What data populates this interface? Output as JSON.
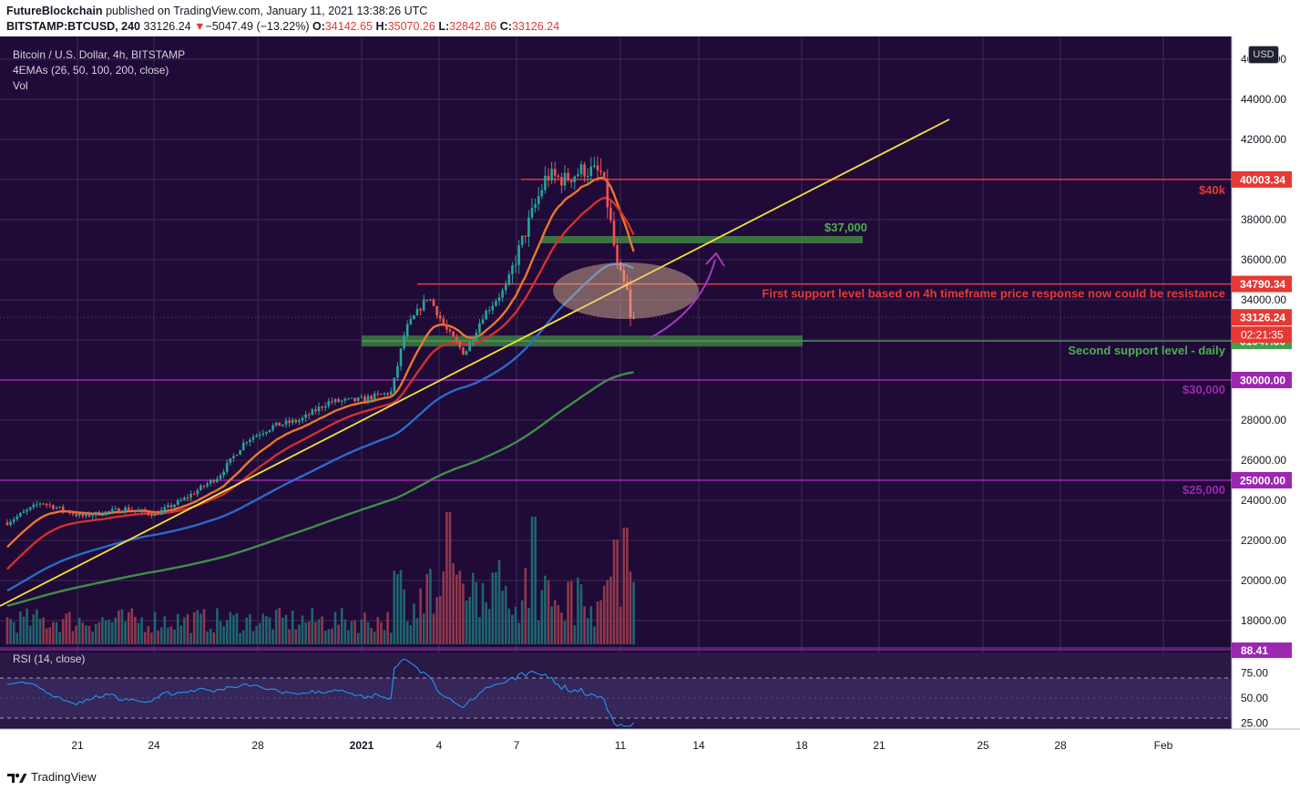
{
  "header": {
    "author": "FutureBlockchain",
    "published_text": "published on TradingView.com, January 11, 2021 13:38:26 UTC",
    "symbol": "BITSTAMP:BTCUSD, 240",
    "last": "33126.24",
    "change_arrow": "▼",
    "change": "−5047.49 (−13.22%)",
    "o_label": "O:",
    "o_value": "34142.65",
    "h_label": "H:",
    "h_value": "35070.26",
    "l_label": "L:",
    "l_value": "32842.86",
    "c_label": "C:",
    "c_value": "33126.24"
  },
  "legend": {
    "title": "Bitcoin / U.S. Dollar, 4h, BITSTAMP",
    "emas": "4EMAs (26, 50, 100, 200, close)",
    "vol": "Vol",
    "rsi": "RSI (14, close)"
  },
  "currency_button": "USD",
  "footer": {
    "brand": "TradingView"
  },
  "colors": {
    "background": "#200a38",
    "up_candle": "#26a69a",
    "down_candle": "#ef5350",
    "ema26": "#e8772e",
    "ema50": "#d32f2f",
    "ema100": "#2a6bc7",
    "ema200": "#3f8f46",
    "trendline": "#f5e23b",
    "resistance": "#e53935",
    "support": "#4caf50",
    "round_levels": "#9c27b0",
    "rsi_line": "#2196f3"
  },
  "chart_data": {
    "type": "candlestick",
    "symbol": "BTCUSD",
    "timeframe": "4h",
    "x_ticks": [
      "21",
      "24",
      "28",
      "2021",
      "4",
      "7",
      "11",
      "14",
      "18",
      "21",
      "25",
      "28",
      "Feb"
    ],
    "y_ticks": [
      "18000.00",
      "20000.00",
      "22000.00",
      "24000.00",
      "26000.00",
      "28000.00",
      "30000.00",
      "32000.00",
      "34000.00",
      "36000.00",
      "38000.00",
      "40000.00",
      "42000.00",
      "44000.00",
      "46000.00"
    ],
    "ylim": [
      16800,
      47000
    ],
    "rsi_ticks": [
      "25.00",
      "50.00",
      "75.00"
    ],
    "price_labels": [
      {
        "value": 40003.34,
        "label": "40003.34",
        "color": "#e53935"
      },
      {
        "value": 34790.34,
        "label": "34790.34",
        "color": "#e53935"
      },
      {
        "value": 33126.24,
        "label": "33126.24",
        "color": "#e53935"
      },
      {
        "value": 31947.36,
        "label": "31947.36",
        "color": "#43a047"
      },
      {
        "value": 30000.0,
        "label": "30000.00",
        "color": "#9c27b0"
      },
      {
        "value": 25000.0,
        "label": "25000.00",
        "color": "#9c27b0"
      }
    ],
    "countdown": "02:21:35",
    "rsi_current": "88.41",
    "levels": [
      {
        "name": "$40k resistance",
        "value": 40003.34
      },
      {
        "name": "First support (now resistance)",
        "value": 34790.34
      },
      {
        "name": "$37,000 zone",
        "value": 36850
      },
      {
        "name": "Second support - daily",
        "value": 31947.36
      },
      {
        "name": "$30,000",
        "value": 30000
      },
      {
        "name": "$25,000",
        "value": 25000
      }
    ],
    "annotations": {
      "forty_k": "$40k",
      "thirty_seven": "$37,000",
      "first_support": "First support level based on 4h timeframe price response now could be resistance",
      "second_support": "Second support level - daily",
      "thirty_k": "$30,000",
      "twenty_five_k": "$25,000"
    }
  }
}
